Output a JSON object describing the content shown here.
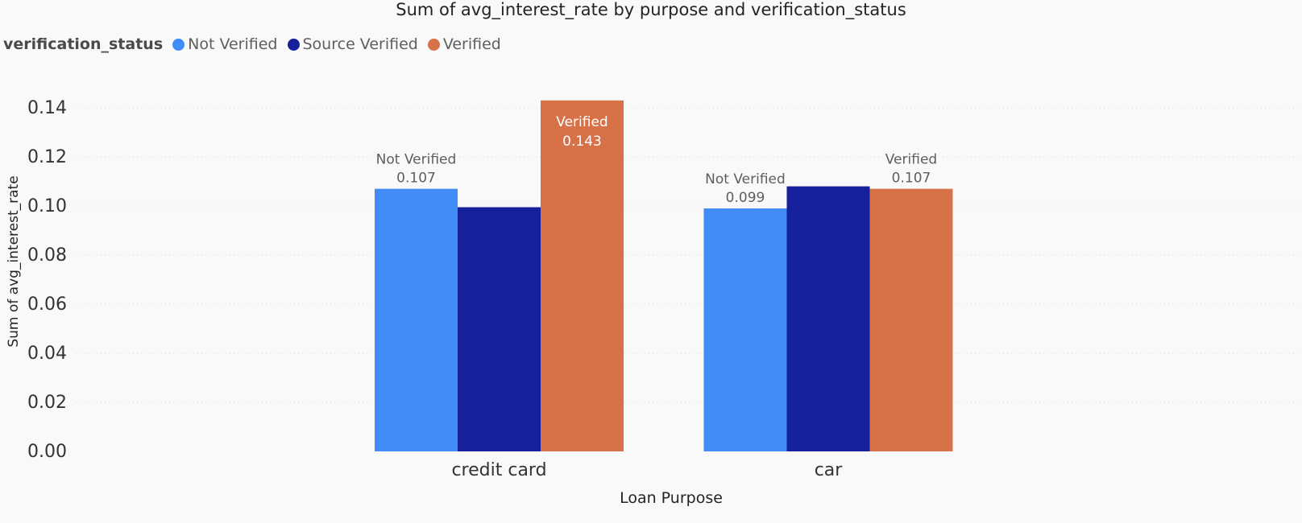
{
  "chart_data": {
    "type": "bar",
    "title": "Sum of avg_interest_rate by purpose and verification_status",
    "xlabel": "Loan Purpose",
    "ylabel": "Sum of avg_interest_rate",
    "categories": [
      "credit card",
      "car"
    ],
    "legend_title": "verification_status",
    "legend_position": "top-left",
    "grid": true,
    "ylim": [
      0,
      0.14
    ],
    "yticks": [
      "0.00",
      "0.02",
      "0.04",
      "0.06",
      "0.08",
      "0.10",
      "0.12",
      "0.14"
    ],
    "series": [
      {
        "name": "Not Verified",
        "color": "#418cf7",
        "values": [
          0.107,
          0.099
        ]
      },
      {
        "name": "Source Verified",
        "color": "#15209a",
        "values": [
          0.0995,
          0.108
        ]
      },
      {
        "name": "Verified",
        "color": "#d77148",
        "values": [
          0.143,
          0.107
        ]
      }
    ],
    "data_labels": [
      {
        "series": "Not Verified",
        "category": "credit card",
        "name": "Not Verified",
        "value": "0.107",
        "placement": "outside"
      },
      {
        "series": "Verified",
        "category": "credit card",
        "name": "Verified",
        "value": "0.143",
        "placement": "inside"
      },
      {
        "series": "Not Verified",
        "category": "car",
        "name": "Not Verified",
        "value": "0.099",
        "placement": "outside"
      },
      {
        "series": "Verified",
        "category": "car",
        "name": "Verified",
        "value": "0.107",
        "placement": "outside"
      }
    ]
  }
}
